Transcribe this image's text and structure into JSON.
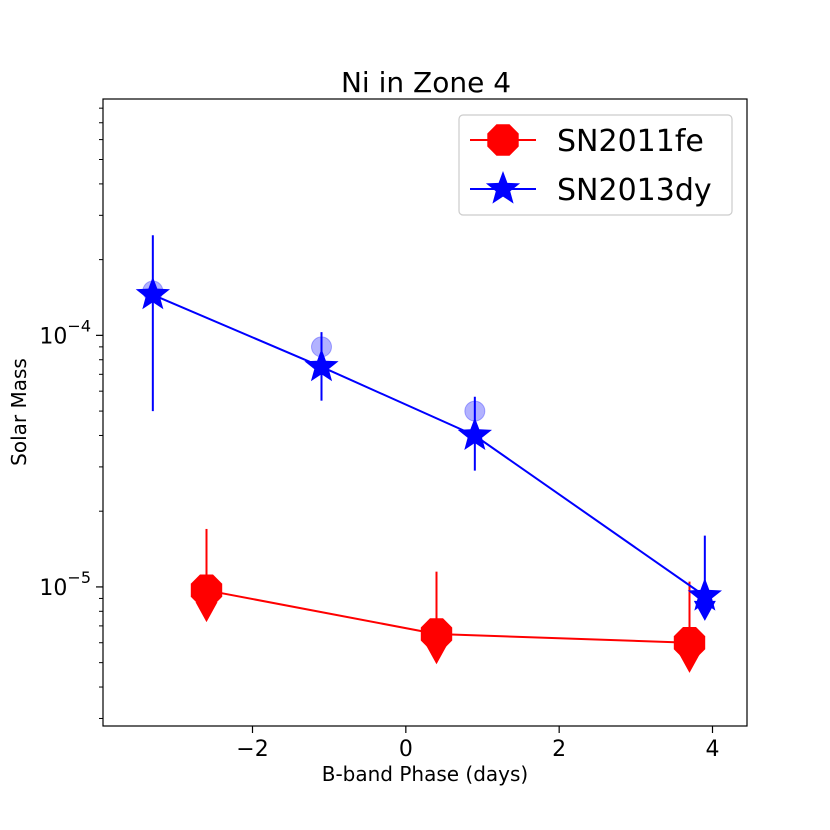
{
  "chart_data": {
    "type": "line",
    "title": "Ni in Zone 4",
    "xlabel": "B-band Phase (days)",
    "ylabel": "Solar Mass",
    "xlim": [
      -3.95,
      4.45
    ],
    "ylim": [
      2.8e-06,
      0.00087
    ],
    "yscale": "log",
    "x_ticks": [
      {
        "value": -2,
        "label": "−2"
      },
      {
        "value": 0,
        "label": "0"
      },
      {
        "value": 2,
        "label": "2"
      },
      {
        "value": 4,
        "label": "4"
      }
    ],
    "y_ticks": [
      {
        "value": 1e-05,
        "base": "10",
        "exp": "−5"
      },
      {
        "value": 0.0001,
        "base": "10",
        "exp": "−4"
      }
    ],
    "legend_position": "upper-right",
    "series": [
      {
        "name": "SN2011fe",
        "color": "#ff0000",
        "marker": "octagon",
        "points": [
          {
            "x": -2.6,
            "y": 9.7e-06,
            "err_low": 7.8e-06,
            "err_high": 1.7e-05
          },
          {
            "x": 0.4,
            "y": 6.5e-06,
            "err_low": 5.3e-06,
            "err_high": 1.15e-05
          },
          {
            "x": 3.7,
            "y": 6e-06,
            "err_low": 4.9e-06,
            "err_high": 1.05e-05
          }
        ]
      },
      {
        "name": "SN2013dy",
        "color": "#0000ff",
        "marker": "star",
        "points": [
          {
            "x": -3.3,
            "y": 0.000145,
            "err_low": 5e-05,
            "err_high": 0.00025
          },
          {
            "x": -1.1,
            "y": 7.5e-05,
            "err_low": 5.5e-05,
            "err_high": 0.000103
          },
          {
            "x": 0.9,
            "y": 4e-05,
            "err_low": 2.9e-05,
            "err_high": 5.7e-05
          },
          {
            "x": 3.9,
            "y": 9.2e-06,
            "err_low": 7.6e-06,
            "err_high": 1.6e-05
          }
        ],
        "ghost_points": [
          {
            "x": -3.3,
            "y": 0.00015
          },
          {
            "x": -1.1,
            "y": 9e-05
          },
          {
            "x": 0.9,
            "y": 5e-05
          }
        ]
      }
    ]
  }
}
